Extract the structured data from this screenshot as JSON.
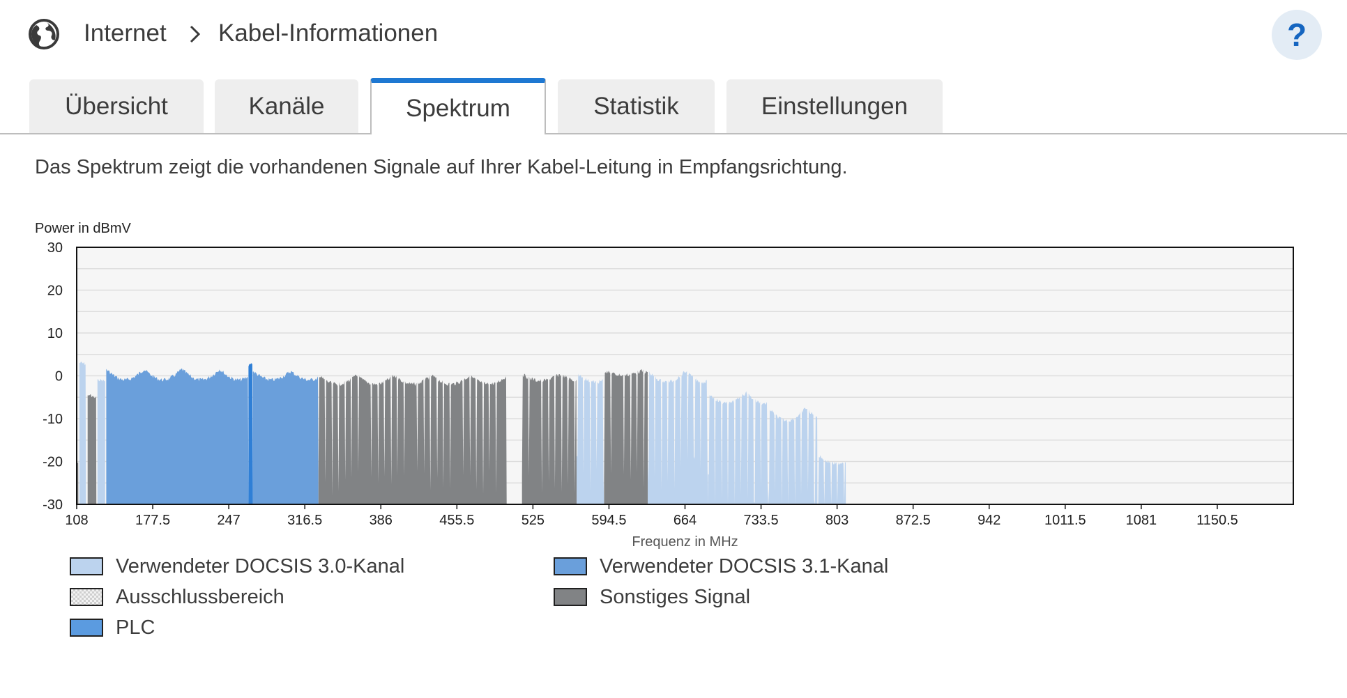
{
  "header": {
    "icon": "globe-icon",
    "breadcrumb": [
      "Internet",
      "Kabel-Informationen"
    ],
    "help_label": "?"
  },
  "tabs": [
    {
      "label": "Übersicht",
      "active": false
    },
    {
      "label": "Kanäle",
      "active": false
    },
    {
      "label": "Spektrum",
      "active": true
    },
    {
      "label": "Statistik",
      "active": false
    },
    {
      "label": "Einstellungen",
      "active": false
    }
  ],
  "description": "Das Spektrum zeigt die vorhandenen Signale auf Ihrer Kabel-Leitung in Empfangsrichtung.",
  "colors": {
    "docsis30": "#bcd3ee",
    "docsis31": "#6a9fdb",
    "plc": "#2f7fd6",
    "other": "#818385",
    "exclusion": "#e6e6e6",
    "accent": "#1e78d2",
    "plot_bg": "#f6f6f6",
    "grid": "#dddddd"
  },
  "chart_data": {
    "type": "area",
    "ylabel": "Power in dBmV",
    "xlabel": "Frequenz in MHz",
    "ylim": [
      -30,
      30
    ],
    "xlim": [
      108,
      1220
    ],
    "yticks": [
      "30",
      "20",
      "10",
      "0",
      "-10",
      "-20",
      "-30"
    ],
    "xticks": [
      "108",
      "177.5",
      "247",
      "316.5",
      "386",
      "455.5",
      "525",
      "594.5",
      "664",
      "733.5",
      "803",
      "872.5",
      "942",
      "1011.5",
      "1081",
      "1150.5"
    ],
    "grid": true,
    "legend_position": "bottom",
    "series": [
      {
        "name": "Verwendeter DOCSIS 3.0-Kanal",
        "kind": "docsis30",
        "segments": [
          {
            "x0": 110.5,
            "x1": 116.5,
            "top": 3.5,
            "ripple": 0.5
          },
          {
            "x0": 127,
            "x1": 134,
            "top": -0.5,
            "ripple": 0.5
          },
          {
            "x0": 569,
            "x1": 570.5,
            "top": -2,
            "ripple": 0
          },
          {
            "x0": 578,
            "x1": 581,
            "top": -2,
            "ripple": 0
          }
        ]
      },
      {
        "name": "Verwendeter DOCSIS 3.1-Kanal",
        "kind": "docsis31",
        "segments": [
          {
            "x0": 135,
            "x1": 265,
            "top": 2,
            "ripple": 2.5
          },
          {
            "x0": 269,
            "x1": 329,
            "top": 1.5,
            "ripple": 2
          }
        ]
      },
      {
        "name": "PLC",
        "kind": "plc",
        "segments": [
          {
            "x0": 265,
            "x1": 269,
            "top": 3,
            "ripple": 0
          }
        ]
      },
      {
        "name": "Sonstiges Signal",
        "kind": "other",
        "segments": [
          {
            "x0": 329,
            "x1": 501,
            "top": 0.5,
            "ripple": 2
          },
          {
            "x0": 515,
            "x1": 565,
            "top": 0.8,
            "ripple": 1.5
          },
          {
            "x0": 590,
            "x1": 630,
            "top": 1.6,
            "ripple": 1
          },
          {
            "x0": 118,
            "x1": 126,
            "top": -4,
            "ripple": 1
          },
          {
            "x0": 108,
            "x1": 109.5,
            "top": -20,
            "ripple": 0
          }
        ]
      },
      {
        "name": "Verwendeter DOCSIS 3.0-Kanal",
        "kind": "docsis30",
        "segments": [
          {
            "x0": 565,
            "x1": 590,
            "top": 1,
            "ripple": 2
          },
          {
            "x0": 630,
            "x1": 685,
            "top": 1.5,
            "ripple": 2.5
          },
          {
            "x0": 685,
            "x1": 740,
            "top": -3.5,
            "ripple": 2.5
          },
          {
            "x0": 740,
            "x1": 785,
            "top": -7,
            "ripple": 3
          },
          {
            "x0": 785,
            "x1": 811,
            "top": -18,
            "ripple": 2
          }
        ]
      }
    ],
    "legend": [
      {
        "label": "Verwendeter DOCSIS 3.0-Kanal",
        "kind": "docsis30"
      },
      {
        "label": "Verwendeter DOCSIS 3.1-Kanal",
        "kind": "docsis31"
      },
      {
        "label": "Ausschlussbereich",
        "kind": "exclusion"
      },
      {
        "label": "Sonstiges Signal",
        "kind": "other"
      },
      {
        "label": "PLC",
        "kind": "plc"
      }
    ]
  }
}
